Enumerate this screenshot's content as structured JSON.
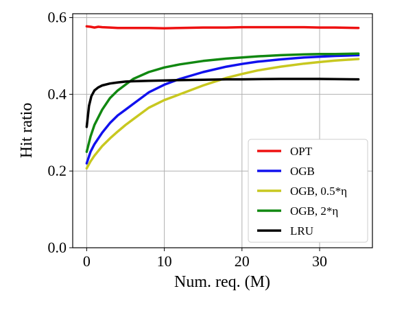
{
  "chart_data": {
    "type": "line",
    "title": "",
    "xlabel": "Num. req. (M)",
    "ylabel": "Hit ratio",
    "xlim": [
      -1.8,
      36.8
    ],
    "ylim": [
      0.0,
      0.61
    ],
    "xticks": [
      0,
      10,
      20,
      30
    ],
    "yticks": [
      0.0,
      0.2,
      0.4,
      0.6
    ],
    "xtick_labels": [
      "0",
      "10",
      "20",
      "30"
    ],
    "ytick_labels": [
      "0.0",
      "0.2",
      "0.4",
      "0.6"
    ],
    "grid": true,
    "legend_position": "lower-right",
    "series": [
      {
        "name": "OPT",
        "color": "#ee1111",
        "x": [
          0,
          0.5,
          1,
          1.5,
          2,
          3,
          4,
          5,
          6,
          8,
          10,
          12,
          15,
          18,
          20,
          22,
          25,
          28,
          30,
          32,
          35
        ],
        "y": [
          0.577,
          0.576,
          0.574,
          0.576,
          0.575,
          0.574,
          0.573,
          0.573,
          0.573,
          0.573,
          0.572,
          0.573,
          0.574,
          0.574,
          0.575,
          0.575,
          0.575,
          0.575,
          0.574,
          0.574,
          0.573
        ]
      },
      {
        "name": "OGB",
        "color": "#1111ee",
        "x": [
          0,
          0.5,
          1,
          2,
          3,
          4,
          5,
          6,
          8,
          10,
          12,
          15,
          18,
          20,
          22,
          25,
          28,
          30,
          32,
          35
        ],
        "y": [
          0.22,
          0.25,
          0.27,
          0.3,
          0.325,
          0.345,
          0.36,
          0.375,
          0.405,
          0.425,
          0.44,
          0.458,
          0.472,
          0.479,
          0.485,
          0.491,
          0.496,
          0.498,
          0.5,
          0.502
        ]
      },
      {
        "name": "OGB, 0.5*η",
        "color": "#c8c820",
        "x": [
          0,
          0.5,
          1,
          2,
          3,
          4,
          5,
          6,
          8,
          10,
          12,
          15,
          18,
          20,
          22,
          25,
          28,
          30,
          32,
          35
        ],
        "y": [
          0.207,
          0.225,
          0.24,
          0.265,
          0.285,
          0.303,
          0.32,
          0.335,
          0.365,
          0.385,
          0.4,
          0.423,
          0.443,
          0.453,
          0.462,
          0.472,
          0.48,
          0.484,
          0.488,
          0.492
        ]
      },
      {
        "name": "OGB, 2*η",
        "color": "#118811",
        "x": [
          0,
          0.5,
          1,
          2,
          3,
          4,
          5,
          6,
          8,
          10,
          12,
          15,
          18,
          20,
          22,
          25,
          28,
          30,
          32,
          35
        ],
        "y": [
          0.25,
          0.29,
          0.32,
          0.36,
          0.39,
          0.41,
          0.425,
          0.44,
          0.458,
          0.47,
          0.478,
          0.487,
          0.493,
          0.496,
          0.499,
          0.502,
          0.504,
          0.505,
          0.505,
          0.506
        ]
      },
      {
        "name": "LRU",
        "color": "#000000",
        "x": [
          0,
          0.3,
          0.6,
          1,
          1.5,
          2,
          3,
          4,
          5,
          6,
          8,
          10,
          12,
          15,
          18,
          20,
          25,
          30,
          35
        ],
        "y": [
          0.315,
          0.37,
          0.395,
          0.41,
          0.418,
          0.423,
          0.428,
          0.431,
          0.433,
          0.434,
          0.435,
          0.436,
          0.437,
          0.438,
          0.439,
          0.439,
          0.44,
          0.44,
          0.439
        ]
      }
    ]
  }
}
